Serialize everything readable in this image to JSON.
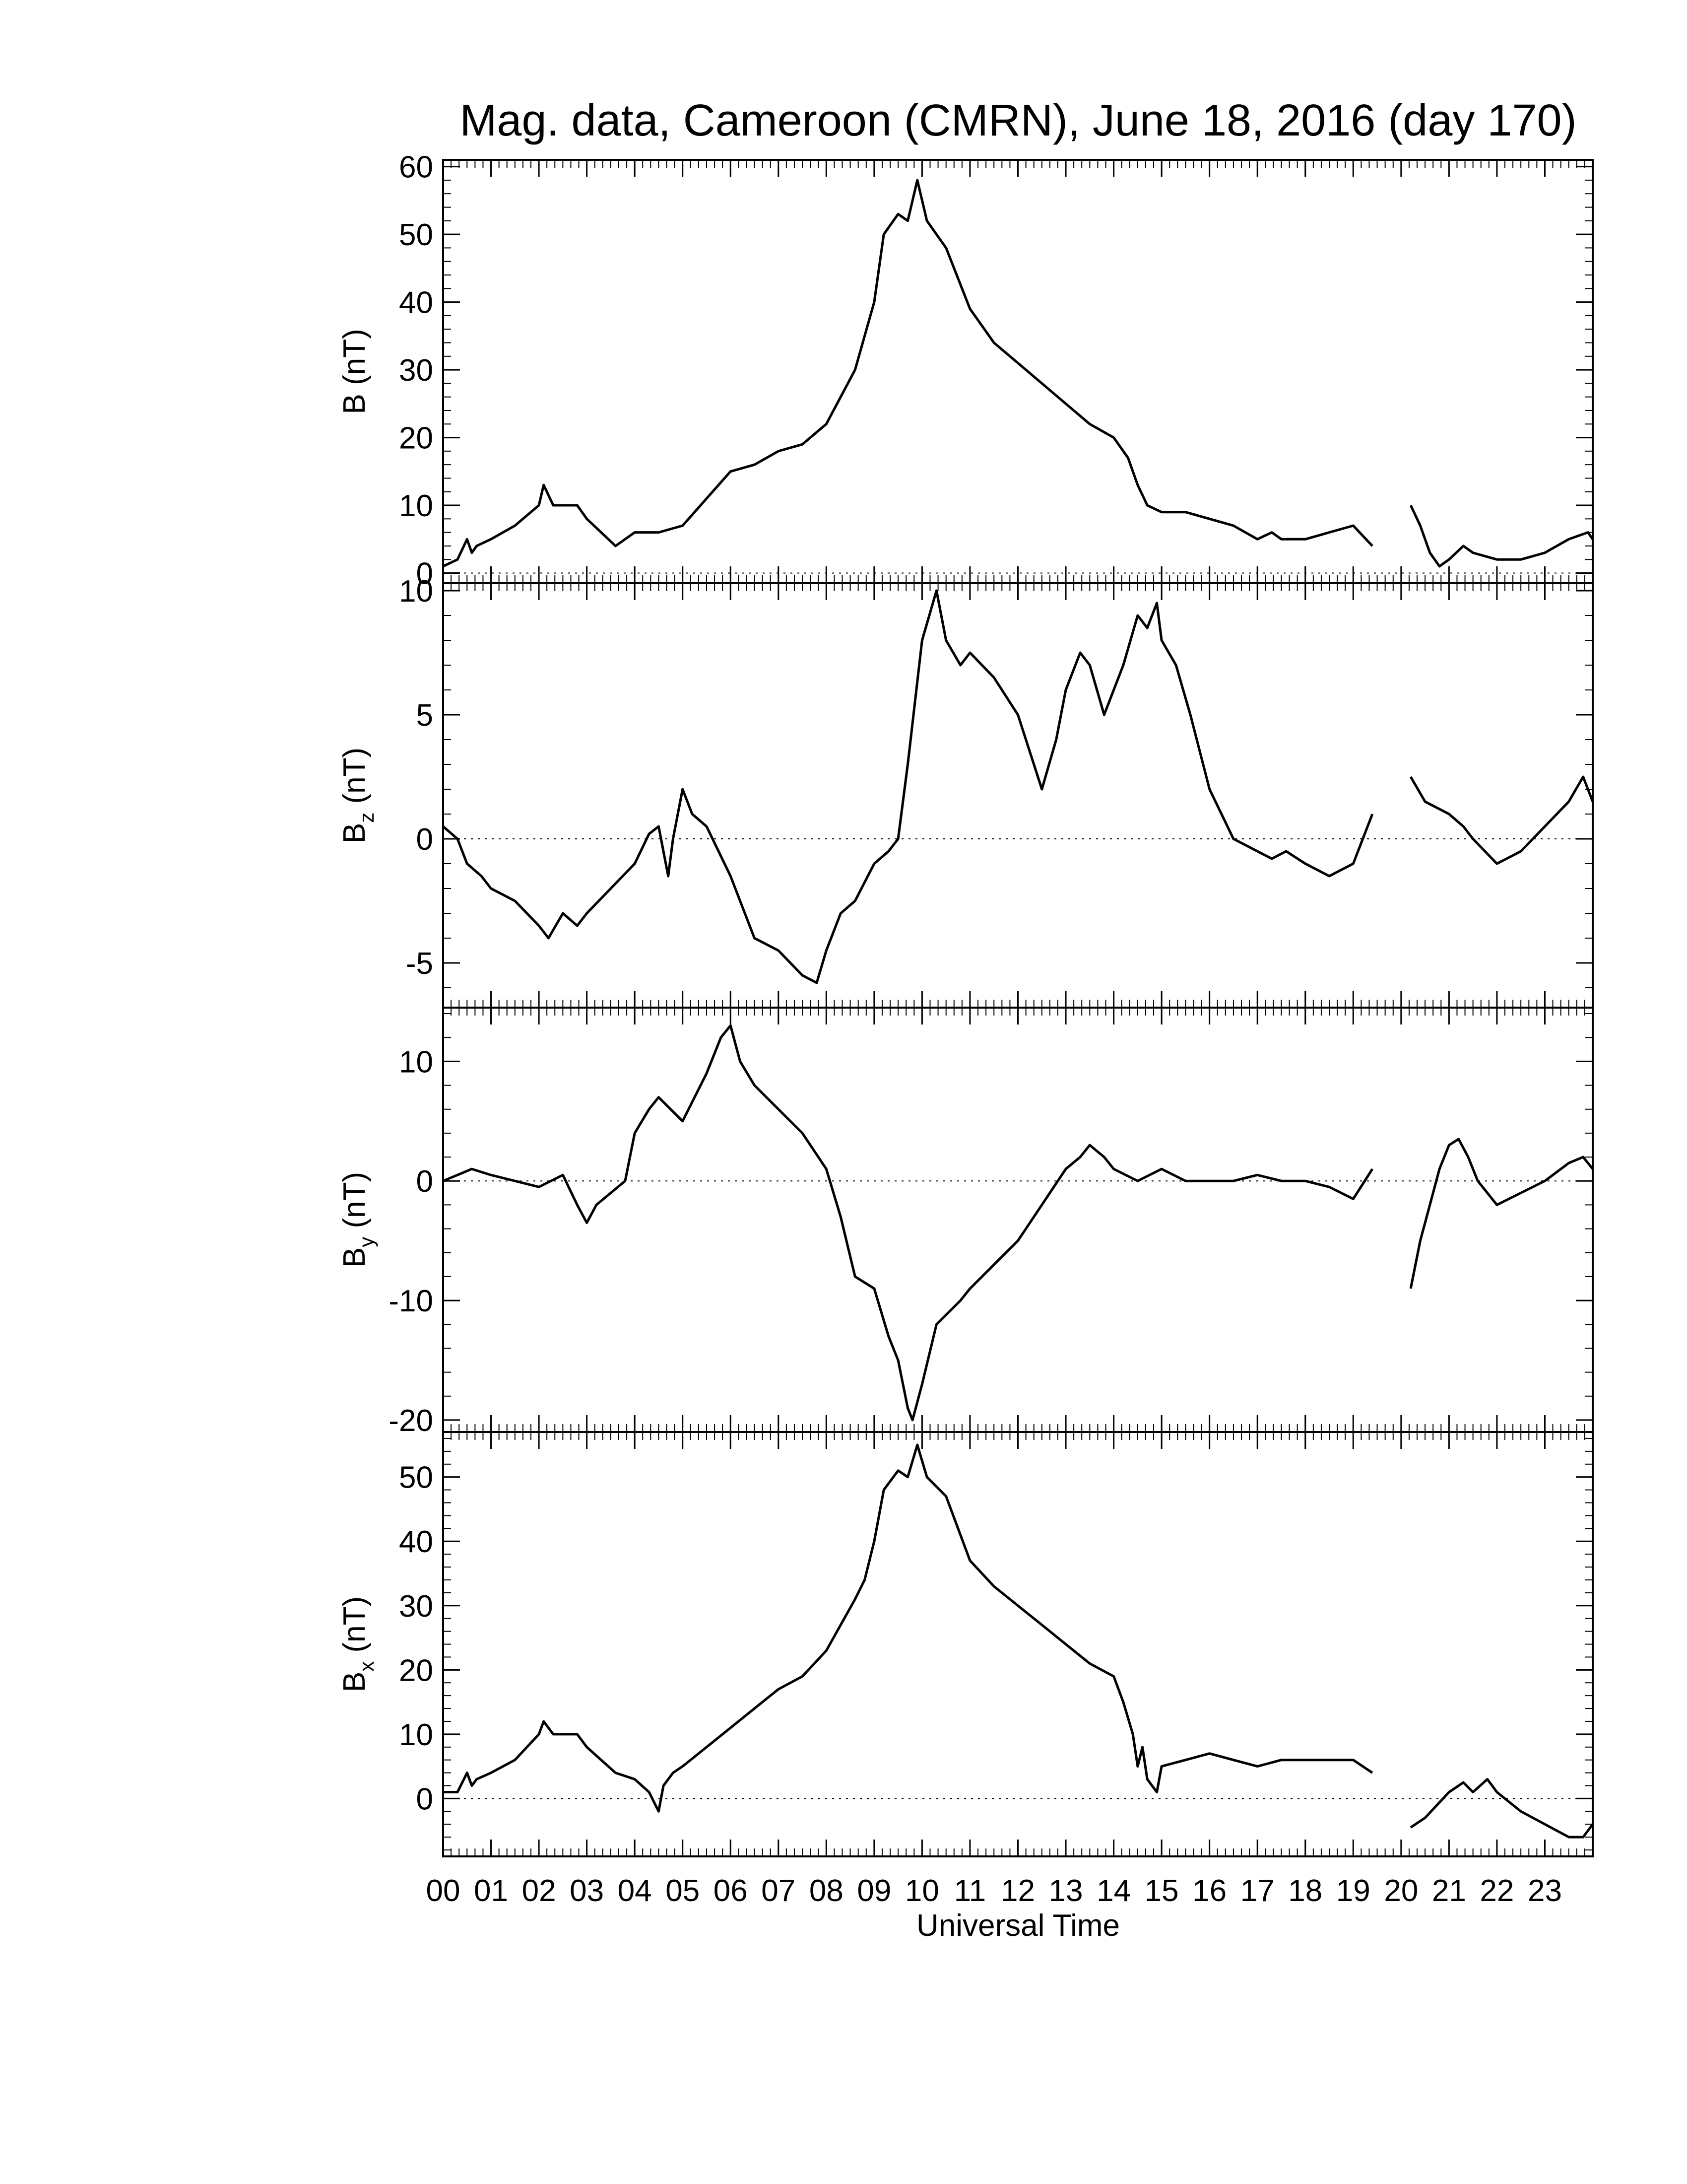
{
  "title": "Mag. data, Cameroon (CMRN), June 18, 2016 (day 170)",
  "xlabel": "Universal Time",
  "x_tick_labels": [
    "00",
    "01",
    "02",
    "03",
    "04",
    "05",
    "06",
    "07",
    "08",
    "09",
    "10",
    "11",
    "12",
    "13",
    "14",
    "15",
    "16",
    "17",
    "18",
    "19",
    "20",
    "21",
    "22",
    "23"
  ],
  "line_color": "#000000",
  "chart_data": [
    {
      "type": "line",
      "ylabel": "B (nT)",
      "ylabel_main": "B",
      "ylabel_sub": "",
      "ylabel_unit": " (nT)",
      "ylim": [
        -1.5,
        61
      ],
      "yticks": [
        0,
        10,
        20,
        30,
        40,
        50,
        60
      ],
      "ytick_labels": [
        "0",
        "10",
        "20",
        "30",
        "40",
        "50",
        "60"
      ],
      "zero_line": true,
      "xlim": [
        0,
        24
      ],
      "segments": [
        {
          "x": [
            0,
            0.3,
            0.5,
            0.6,
            0.7,
            1.0,
            1.5,
            2.0,
            2.1,
            2.3,
            2.8,
            3.0,
            3.3,
            3.6,
            4.0,
            4.5,
            5.0,
            5.5,
            6.0,
            6.5,
            7.0,
            7.5,
            8.0,
            8.3,
            8.6,
            8.8,
            9.0,
            9.2,
            9.5,
            9.7,
            9.9,
            10.1,
            10.5,
            11.0,
            11.5,
            12.0,
            12.5,
            13.0,
            13.5,
            14.0,
            14.3,
            14.5,
            14.7,
            15.0,
            15.5,
            16.0,
            16.5,
            17.0,
            17.3,
            17.5,
            18.0,
            18.5,
            19.0,
            19.4
          ],
          "y": [
            1,
            2,
            5,
            3,
            4,
            5,
            7,
            10,
            13,
            10,
            10,
            8,
            6,
            4,
            6,
            6,
            7,
            11,
            15,
            16,
            18,
            19,
            22,
            26,
            30,
            35,
            40,
            50,
            53,
            52,
            58,
            52,
            48,
            39,
            34,
            31,
            28,
            25,
            22,
            20,
            17,
            13,
            10,
            9,
            9,
            8,
            7,
            5,
            6,
            5,
            5,
            6,
            7,
            4
          ]
        },
        {
          "x": [
            20.2,
            20.4,
            20.6,
            20.8,
            21.0,
            21.3,
            21.5,
            22.0,
            22.5,
            23.0,
            23.5,
            23.9,
            24.0
          ],
          "y": [
            10,
            7,
            3,
            1,
            2,
            4,
            3,
            2,
            2,
            3,
            5,
            6,
            5
          ]
        }
      ]
    },
    {
      "type": "line",
      "ylabel": "Bz (nT)",
      "ylabel_main": "B",
      "ylabel_sub": "z",
      "ylabel_unit": " (nT)",
      "ylim": [
        -6.8,
        10.3
      ],
      "yticks": [
        -5,
        0,
        5,
        10
      ],
      "ytick_labels": [
        "-5",
        "0",
        "5",
        "10"
      ],
      "zero_line": true,
      "xlim": [
        0,
        24
      ],
      "segments": [
        {
          "x": [
            0,
            0.3,
            0.5,
            0.8,
            1.0,
            1.5,
            2.0,
            2.2,
            2.5,
            2.8,
            3.0,
            3.5,
            4.0,
            4.3,
            4.5,
            4.7,
            4.8,
            5.0,
            5.2,
            5.5,
            6.0,
            6.5,
            7.0,
            7.5,
            7.8,
            8.0,
            8.3,
            8.6,
            9.0,
            9.3,
            9.5,
            9.7,
            10.0,
            10.3,
            10.5,
            10.8,
            11.0,
            11.5,
            12.0,
            12.5,
            12.8,
            13.0,
            13.3,
            13.5,
            13.8,
            14.0,
            14.2,
            14.5,
            14.7,
            14.9,
            15.0,
            15.3,
            15.6,
            16.0,
            16.5,
            17.0,
            17.3,
            17.6,
            18.0,
            18.5,
            19.0,
            19.4
          ],
          "y": [
            0.5,
            0,
            -1,
            -1.5,
            -2,
            -2.5,
            -3.5,
            -4,
            -3,
            -3.5,
            -3,
            -2,
            -1,
            0.2,
            0.5,
            -1.5,
            0,
            2,
            1,
            0.5,
            -1.5,
            -4,
            -4.5,
            -5.5,
            -5.8,
            -4.5,
            -3,
            -2.5,
            -1,
            -0.5,
            0,
            3,
            8,
            10,
            8,
            7,
            7.5,
            6.5,
            5,
            2,
            4,
            6,
            7.5,
            7,
            5,
            6,
            7,
            9,
            8.5,
            9.5,
            8,
            7,
            5,
            2,
            0,
            -0.5,
            -0.8,
            -0.5,
            -1,
            -1.5,
            -1,
            1
          ]
        },
        {
          "x": [
            20.2,
            20.5,
            21.0,
            21.3,
            21.5,
            22.0,
            22.5,
            23.0,
            23.5,
            23.8,
            24.0
          ],
          "y": [
            2.5,
            1.5,
            1,
            0.5,
            0,
            -1,
            -0.5,
            0.5,
            1.5,
            2.5,
            1.5
          ]
        }
      ]
    },
    {
      "type": "line",
      "ylabel": "By (nT)",
      "ylabel_main": "B",
      "ylabel_sub": "y",
      "ylabel_unit": " (nT)",
      "ylim": [
        -21,
        14.5
      ],
      "yticks": [
        -20,
        -10,
        0,
        10
      ],
      "ytick_labels": [
        "-20",
        "-10",
        "0",
        "10"
      ],
      "zero_line": true,
      "xlim": [
        0,
        24
      ],
      "segments": [
        {
          "x": [
            0,
            0.3,
            0.6,
            1.0,
            1.5,
            2.0,
            2.5,
            2.8,
            3.0,
            3.2,
            3.5,
            3.8,
            4.0,
            4.3,
            4.5,
            5.0,
            5.5,
            5.8,
            6.0,
            6.2,
            6.5,
            7.0,
            7.5,
            8.0,
            8.3,
            8.6,
            9.0,
            9.3,
            9.5,
            9.7,
            9.8,
            10.0,
            10.3,
            10.8,
            11.0,
            11.5,
            12.0,
            12.5,
            13.0,
            13.3,
            13.5,
            13.8,
            14.0,
            14.5,
            15.0,
            15.5,
            16.0,
            16.5,
            17.0,
            17.5,
            18.0,
            18.5,
            19.0,
            19.4
          ],
          "y": [
            0,
            0.5,
            1,
            0.5,
            0,
            -0.5,
            0.5,
            -2,
            -3.5,
            -2,
            -1,
            0,
            4,
            6,
            7,
            5,
            9,
            12,
            13,
            10,
            8,
            6,
            4,
            1,
            -3,
            -8,
            -9,
            -13,
            -15,
            -19,
            -20,
            -17,
            -12,
            -10,
            -9,
            -7,
            -5,
            -2,
            1,
            2,
            3,
            2,
            1,
            0,
            1,
            0,
            0,
            0,
            0.5,
            0,
            0,
            -0.5,
            -1.5,
            1
          ]
        },
        {
          "x": [
            20.2,
            20.4,
            20.6,
            20.8,
            21.0,
            21.2,
            21.4,
            21.6,
            21.8,
            22.0,
            22.5,
            23.0,
            23.5,
            23.8,
            24.0
          ],
          "y": [
            -9,
            -5,
            -2,
            1,
            3,
            3.5,
            2,
            0,
            -1,
            -2,
            -1,
            0,
            1.5,
            2,
            1
          ]
        }
      ]
    },
    {
      "type": "line",
      "ylabel": "Bx (nT)",
      "ylabel_main": "B",
      "ylabel_sub": "x",
      "ylabel_unit": " (nT)",
      "ylim": [
        -9,
        57
      ],
      "yticks": [
        0,
        10,
        20,
        30,
        40,
        50
      ],
      "ytick_labels": [
        "0",
        "10",
        "20",
        "30",
        "40",
        "50"
      ],
      "zero_line": true,
      "xlim": [
        0,
        24
      ],
      "segments": [
        {
          "x": [
            0,
            0.3,
            0.5,
            0.6,
            0.7,
            1.0,
            1.5,
            2.0,
            2.1,
            2.3,
            2.8,
            3.0,
            3.3,
            3.6,
            4.0,
            4.3,
            4.5,
            4.6,
            4.8,
            5.0,
            5.5,
            6.0,
            6.5,
            7.0,
            7.5,
            8.0,
            8.3,
            8.6,
            8.8,
            9.0,
            9.2,
            9.5,
            9.7,
            9.9,
            10.1,
            10.5,
            11.0,
            11.5,
            12.0,
            12.5,
            13.0,
            13.5,
            14.0,
            14.2,
            14.4,
            14.5,
            14.6,
            14.7,
            14.9,
            15.0,
            15.5,
            16.0,
            16.5,
            17.0,
            17.5,
            18.0,
            18.5,
            19.0,
            19.4
          ],
          "y": [
            1,
            1,
            4,
            2,
            3,
            4,
            6,
            10,
            12,
            10,
            10,
            8,
            6,
            4,
            3,
            1,
            -2,
            2,
            4,
            5,
            8,
            11,
            14,
            17,
            19,
            23,
            27,
            31,
            34,
            40,
            48,
            51,
            50,
            55,
            50,
            47,
            37,
            33,
            30,
            27,
            24,
            21,
            19,
            15,
            10,
            5,
            8,
            3,
            1,
            5,
            6,
            7,
            6,
            5,
            6,
            6,
            6,
            6,
            4
          ]
        },
        {
          "x": [
            20.2,
            20.5,
            21.0,
            21.3,
            21.5,
            21.8,
            22.0,
            22.5,
            23.0,
            23.5,
            23.8,
            24.0
          ],
          "y": [
            -4.5,
            -3,
            1,
            2.5,
            1,
            3,
            1,
            -2,
            -4,
            -6,
            -6,
            -4
          ]
        }
      ]
    }
  ]
}
